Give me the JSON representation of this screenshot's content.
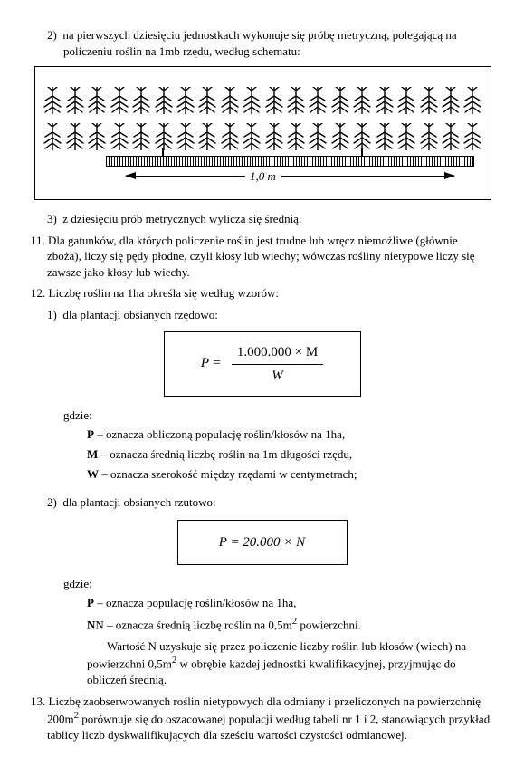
{
  "p2a": "2)",
  "p2b": "na pierwszych dziesięciu jednostkach wykonuje się próbę metryczną, polegającą na policzeniu roślin na 1mb rzędu, według schematu:",
  "diagram": {
    "label_1m": "1,0 m",
    "plant_glyph": "⋞"
  },
  "p3a": "3)",
  "p3b": "z dziesięciu prób metrycznych wylicza się średnią.",
  "p11a": "11.",
  "p11b": "Dla gatunków, dla których policzenie roślin jest trudne lub wręcz niemożliwe (głównie zboża), liczy się pędy płodne, czyli kłosy lub wiechy; wówczas rośliny nietypowe liczy się zawsze jako kłosy lub wiechy.",
  "p12a": "12.",
  "p12b": "Liczbę roślin na 1ha określa się według wzorów:",
  "p12_1a": "1)",
  "p12_1b": "dla plantacji obsianych rzędowo:",
  "formula1": {
    "lhs": "P =",
    "num": "1.000.000 × M",
    "den": "W"
  },
  "gdzie": "gdzie:",
  "defP1": "P – oznacza obliczoną populację roślin/kłosów na 1ha,",
  "defM": "M – oznacza średnią liczbę roślin na 1m długości rzędu,",
  "defW": "W – oznacza szerokość między rzędami w centymetrach;",
  "p12_2a": "2)",
  "p12_2b": "dla plantacji obsianych rzutowo:",
  "formula2": {
    "text": "P = 20.000 × N"
  },
  "defP2": "P – oznacza populację roślin/kłosów na 1ha,",
  "defN_pre": "N – oznacza średnią liczbę roślin na 0,5m",
  "defN_post": " powierzchni.",
  "noteN_pre": "Wartość N uzyskuje się przez policzenie liczby roślin lub kłosów (wiech) na powierzchni 0,5m",
  "noteN_post": " w obrębie każdej jednostki kwalifikacyjnej, przyjmując do obliczeń średnią.",
  "p13a": "13.",
  "p13b_pre": "Liczbę zaobserwowanych roślin nietypowych dla odmiany i przeliczonych na powierzchnię 200m",
  "p13b_post": " porównuje się do oszacowanej populacji według tabeli nr 1 i 2, stanowiących przykład tablicy liczb dyskwalifikujących dla sześciu wartości czystości odmianowej.",
  "bold": {
    "P": "P",
    "M": "M",
    "W": "W",
    "N": "N"
  }
}
